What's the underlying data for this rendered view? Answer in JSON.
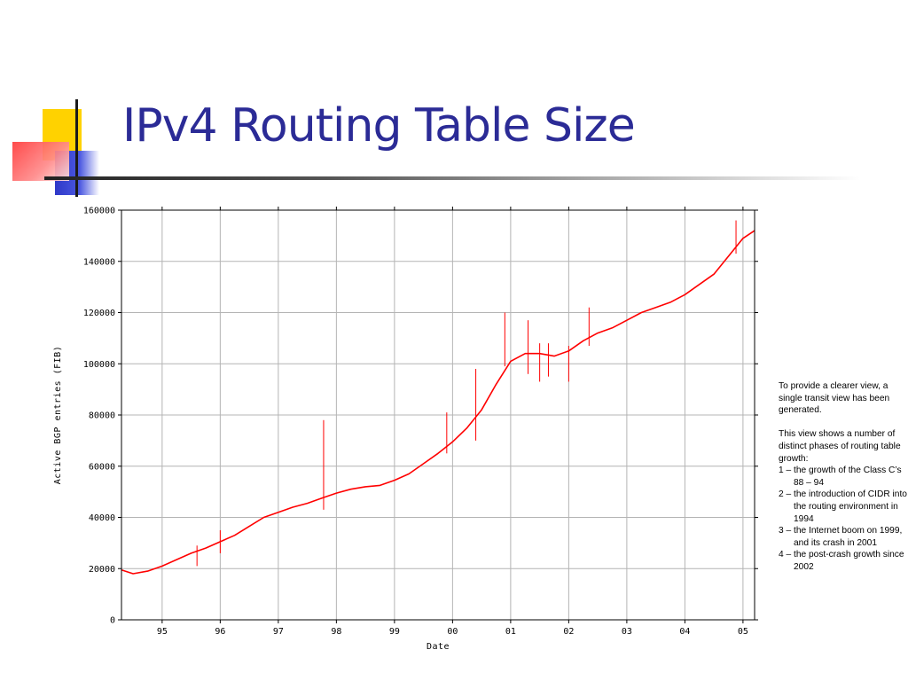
{
  "slide": {
    "title": "IPv4 Routing Table Size",
    "notes": {
      "intro": "To provide a clearer view, a single transit view has been generated.",
      "lead": "This view shows a number of distinct phases of routing table growth:",
      "items": [
        "1 – the growth of the Class C’s 88 – 94",
        "2 – the introduction of CIDR into the routing environment in 1994",
        "3 – the Internet boom on 1999, and its crash in 2001",
        "4 – the post-crash growth since 2002"
      ]
    }
  },
  "chart_data": {
    "type": "line",
    "title": "",
    "xlabel": "Date",
    "ylabel": "Active BGP entries (FIB)",
    "x_ticks": [
      "95",
      "96",
      "97",
      "98",
      "99",
      "00",
      "01",
      "02",
      "03",
      "04",
      "05"
    ],
    "y_ticks": [
      "0",
      "20000",
      "40000",
      "60000",
      "80000",
      "100000",
      "120000",
      "140000",
      "160000"
    ],
    "xlim": [
      1994.3,
      2005.2
    ],
    "ylim": [
      0,
      160000
    ],
    "grid": true,
    "series_color": "#ff0000",
    "series": [
      {
        "x": [
          1994.3,
          1994.5,
          1994.75,
          1995.0,
          1995.25,
          1995.5,
          1995.75,
          1996.0,
          1996.25,
          1996.5,
          1996.75,
          1997.0,
          1997.25,
          1997.5,
          1997.75,
          1998.0,
          1998.25,
          1998.5,
          1998.75,
          1999.0,
          1999.25,
          1999.5,
          1999.75,
          2000.0,
          2000.25,
          2000.5,
          2000.75,
          2001.0,
          2001.25,
          2001.5,
          2001.75,
          2002.0,
          2002.25,
          2002.5,
          2002.75,
          2003.0,
          2003.25,
          2003.5,
          2003.75,
          2004.0,
          2004.25,
          2004.5,
          2004.75,
          2005.0,
          2005.2
        ],
        "y": [
          19500,
          18000,
          19000,
          21000,
          23500,
          26000,
          28000,
          30500,
          33000,
          36500,
          40000,
          42000,
          44000,
          45500,
          47500,
          49500,
          51000,
          52000,
          52500,
          54500,
          57000,
          61000,
          65000,
          69500,
          75000,
          82000,
          92000,
          101000,
          104000,
          104000,
          103000,
          105000,
          109000,
          112000,
          114000,
          117000,
          120000,
          122000,
          124000,
          127000,
          131000,
          135000,
          142000,
          149000,
          152000
        ]
      }
    ],
    "spikes": [
      {
        "x": 1997.78,
        "y_low": 43000,
        "y_high": 78000
      },
      {
        "x": 2000.9,
        "y_low": 99000,
        "y_high": 120000
      },
      {
        "x": 2001.3,
        "y_low": 96000,
        "y_high": 117000
      },
      {
        "x": 2001.5,
        "y_low": 93000,
        "y_high": 108000
      },
      {
        "x": 2001.65,
        "y_low": 95000,
        "y_high": 108000
      },
      {
        "x": 2002.0,
        "y_low": 93000,
        "y_high": 107000
      },
      {
        "x": 2002.35,
        "y_low": 107000,
        "y_high": 122000
      },
      {
        "x": 2000.4,
        "y_low": 70000,
        "y_high": 98000
      },
      {
        "x": 1999.9,
        "y_low": 65000,
        "y_high": 81000
      },
      {
        "x": 2004.88,
        "y_low": 143000,
        "y_high": 156000
      },
      {
        "x": 1996.0,
        "y_low": 26000,
        "y_high": 35000
      },
      {
        "x": 1995.6,
        "y_low": 21000,
        "y_high": 29000
      }
    ]
  }
}
